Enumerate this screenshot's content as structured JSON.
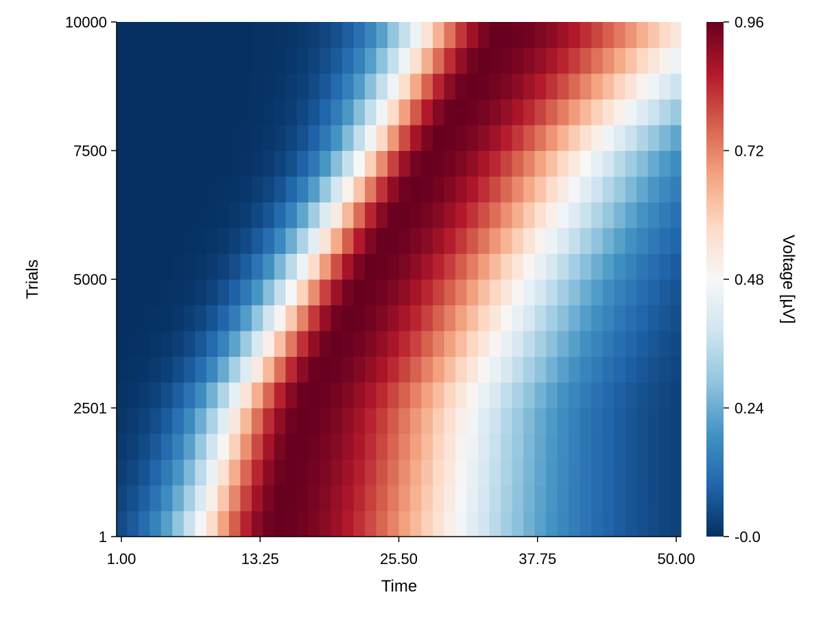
{
  "chart_data": {
    "type": "heatmap",
    "title": "",
    "xlabel": "Time",
    "ylabel": "Trials",
    "colorbar_label": "Voltage [µV]",
    "xlim": [
      1,
      50
    ],
    "ylim": [
      1,
      10000
    ],
    "x_ticks": [
      1.0,
      13.25,
      25.5,
      37.75,
      50.0
    ],
    "x_tick_labels": [
      "1.00",
      "13.25",
      "25.50",
      "37.75",
      "50.00"
    ],
    "y_ticks": [
      1,
      2501,
      5000,
      7500,
      10000
    ],
    "y_tick_labels": [
      "1",
      "2501",
      "5000",
      "7500",
      "10000"
    ],
    "colorbar_range": [
      0,
      0.96
    ],
    "colorbar_ticks": [
      0,
      0.24,
      0.48,
      0.72,
      0.96
    ],
    "colorbar_tick_labels": [
      "-0.0",
      "0.24",
      "0.48",
      "0.72",
      "0.96"
    ],
    "colormap": "RdBu reversed (blue low, red high)",
    "colormap_stops": [
      "#053061",
      "#2166ac",
      "#4393c3",
      "#92c5de",
      "#d1e5f0",
      "#f7f7f7",
      "#fddbc7",
      "#f4a582",
      "#d6604d",
      "#b2182b",
      "#67001f"
    ],
    "grid": false,
    "trial_groups": 20,
    "time_points": 50,
    "peak_voltage": 0.96,
    "pattern": {
      "description_of_values": "Each trial group shows a smooth voltage bump over time; the bump onset and peak shift later as trial number increases.",
      "peak_center_time_by_trial": [
        {
          "trial": 1,
          "time": 14.5
        },
        {
          "trial": 2501,
          "time": 17.0
        },
        {
          "trial": 5000,
          "time": 22.5
        },
        {
          "trial": 7500,
          "time": 28.5
        },
        {
          "trial": 10000,
          "time": 35.0
        }
      ],
      "onset_time_by_trial": [
        {
          "trial": 1,
          "time": 2.0
        },
        {
          "trial": 2501,
          "time": 5.5
        },
        {
          "trial": 5000,
          "time": 11.5
        },
        {
          "trial": 7500,
          "time": 17.5
        },
        {
          "trial": 10000,
          "time": 21.5
        }
      ]
    }
  }
}
